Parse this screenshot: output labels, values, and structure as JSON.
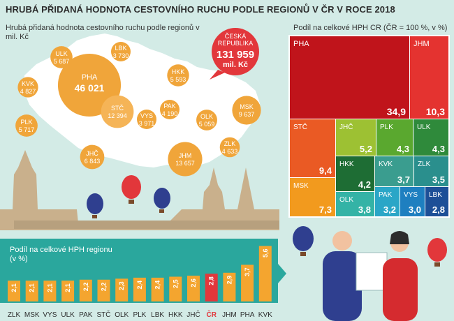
{
  "title": "HRUBÁ PŘIDANÁ HODNOTA CESTOVNÍHO RUCHU PODLE REGIONŮ V ČR V  ROCE 2018",
  "map_subtitle": "Hrubá přidaná hodnota cestovního ruchu podle regionů v mil. Kč",
  "treemap_title": "Podíl na celkové HPH CR (ČR = 100 %, v %)",
  "bar_title": "Podíl na celkové HPH regionu (v %)",
  "total": {
    "label_line1": "ČESKÁ",
    "label_line2": "REPUBLIKA",
    "value": "131 959",
    "unit": "mil. Kč"
  },
  "colors": {
    "background": "#d3ebe6",
    "bubble": "#f0a53a",
    "bubble_dark": "#e8921e",
    "total": "#e2373b",
    "map": "#ffffff",
    "bar_strip": "#2aa79d",
    "bar": "#f4a52f",
    "bar_highlight": "#e2373b"
  },
  "chart_data": [
    {
      "type": "bubble",
      "unit": "mil. Kč",
      "regions": [
        {
          "name": "PHA",
          "value": "46 021"
        },
        {
          "name": "STČ",
          "value": "12 394"
        },
        {
          "name": "JHM",
          "value": "13 657"
        },
        {
          "name": "MSK",
          "value": "9 637"
        },
        {
          "name": "JHČ",
          "value": "6 843"
        },
        {
          "name": "ULK",
          "value": "5 687"
        },
        {
          "name": "PLK",
          "value": "5 717"
        },
        {
          "name": "HKK",
          "value": "5 593"
        },
        {
          "name": "OLK",
          "value": "5 059"
        },
        {
          "name": "KVK",
          "value": "4 827"
        },
        {
          "name": "ZLK",
          "value": "4 633"
        },
        {
          "name": "PAK",
          "value": "4 190"
        },
        {
          "name": "VYS",
          "value": "3 971"
        },
        {
          "name": "LBK",
          "value": "3 730"
        }
      ]
    },
    {
      "type": "treemap",
      "unit": "%",
      "items": [
        {
          "name": "PHA",
          "value": "34,9",
          "color": "#c0141b"
        },
        {
          "name": "JHM",
          "value": "10,3",
          "color": "#e43330"
        },
        {
          "name": "STČ",
          "value": "9,4",
          "color": "#ea5a24"
        },
        {
          "name": "MSK",
          "value": "7,3",
          "color": "#f29a1e"
        },
        {
          "name": "JHČ",
          "value": "5,2",
          "color": "#9dc133"
        },
        {
          "name": "PLK",
          "value": "4,3",
          "color": "#5aa82f"
        },
        {
          "name": "ULK",
          "value": "4,3",
          "color": "#2f8a3b"
        },
        {
          "name": "HKK",
          "value": "4,2",
          "color": "#1e6d34"
        },
        {
          "name": "KVK",
          "value": "3,7",
          "color": "#3a9d8f"
        },
        {
          "name": "ZLK",
          "value": "3,5",
          "color": "#2a8f8d"
        },
        {
          "name": "OLK",
          "value": "3,8",
          "color": "#34b3a6"
        },
        {
          "name": "PAK",
          "value": "3,2",
          "color": "#2aa6c7"
        },
        {
          "name": "VYS",
          "value": "3,0",
          "color": "#1e7fc0"
        },
        {
          "name": "LBK",
          "value": "2,8",
          "color": "#1d4f97"
        }
      ]
    },
    {
      "type": "bar",
      "categories": [
        "ZLK",
        "MSK",
        "VYS",
        "ULK",
        "PAK",
        "STČ",
        "OLK",
        "PLK",
        "LBK",
        "HKK",
        "JHČ",
        "ČR",
        "JHM",
        "PHA",
        "KVK"
      ],
      "values": [
        2.1,
        2.1,
        2.1,
        2.1,
        2.2,
        2.2,
        2.3,
        2.4,
        2.4,
        2.5,
        2.6,
        2.8,
        2.9,
        3.7,
        5.6
      ],
      "labels": [
        "2,1",
        "2,1",
        "2,1",
        "2,1",
        "2,2",
        "2,2",
        "2,3",
        "2,4",
        "2,4",
        "2,5",
        "2,6",
        "2,8",
        "2,9",
        "3,7",
        "5,6"
      ],
      "highlight": "ČR"
    }
  ]
}
